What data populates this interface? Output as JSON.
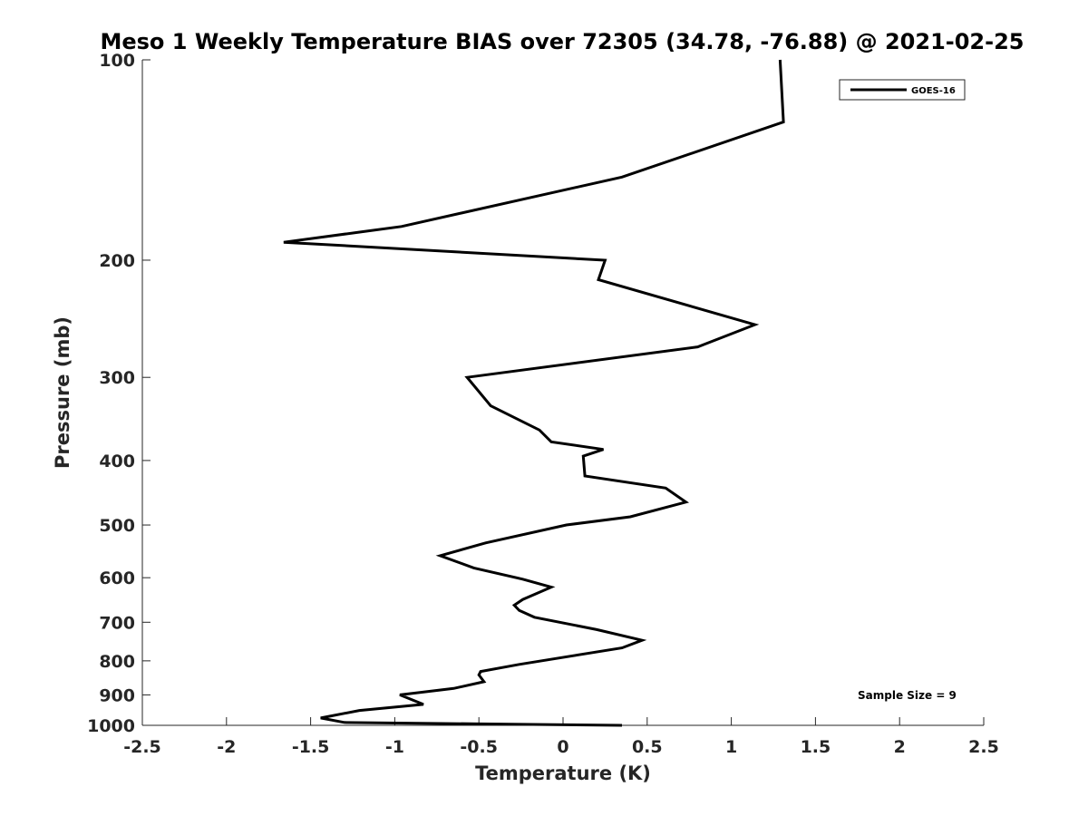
{
  "chart_data": {
    "type": "line",
    "title": "Meso 1 Weekly Temperature BIAS over 72305 (34.78, -76.88) @ 2021-02-25",
    "xlabel": "Temperature (K)",
    "ylabel": "Pressure (mb)",
    "xlim": [
      -2.5,
      2.5
    ],
    "ylim": [
      100,
      1000
    ],
    "y_scale": "log",
    "y_reversed": true,
    "x_ticks": [
      -2.5,
      -2,
      -1.5,
      -1,
      -0.5,
      0,
      0.5,
      1,
      1.5,
      2,
      2.5
    ],
    "x_tick_labels": [
      "-2.5",
      "-2",
      "-1.5",
      "-1",
      "-0.5",
      "0",
      "0.5",
      "1",
      "1.5",
      "2",
      "2.5"
    ],
    "y_ticks": [
      100,
      200,
      300,
      400,
      500,
      600,
      700,
      800,
      900,
      1000
    ],
    "y_tick_labels": [
      "100",
      "200",
      "300",
      "400",
      "500",
      "600",
      "700",
      "800",
      "900",
      "1000"
    ],
    "grid": false,
    "legend_position": "top-right",
    "annotation": "Sample Size = 9",
    "series": [
      {
        "name": "GOES-16",
        "color": "#000000",
        "x": [
          1.29,
          1.31,
          0.35,
          -0.96,
          -1.66,
          0.25,
          0.21,
          1.14,
          0.8,
          -0.57,
          -0.43,
          -0.14,
          -0.07,
          0.24,
          0.12,
          0.13,
          0.61,
          0.73,
          0.4,
          0.02,
          -0.46,
          -0.73,
          -0.53,
          -0.24,
          -0.07,
          -0.24,
          -0.29,
          -0.26,
          -0.17,
          0.2,
          0.47,
          0.35,
          -0.26,
          -0.49,
          -0.5,
          -0.47,
          -0.65,
          -0.97,
          -0.83,
          -1.21,
          -1.44,
          -1.3,
          -0.5,
          0.35
        ],
        "y": [
          100,
          124,
          150,
          178,
          188,
          200,
          214,
          250,
          270,
          300,
          331,
          360,
          375,
          385,
          394,
          422,
          440,
          462,
          486,
          500,
          532,
          556,
          580,
          603,
          620,
          647,
          660,
          672,
          688,
          718,
          745,
          765,
          810,
          830,
          840,
          860,
          880,
          900,
          930,
          950,
          975,
          990,
          995,
          1000
        ]
      }
    ]
  }
}
